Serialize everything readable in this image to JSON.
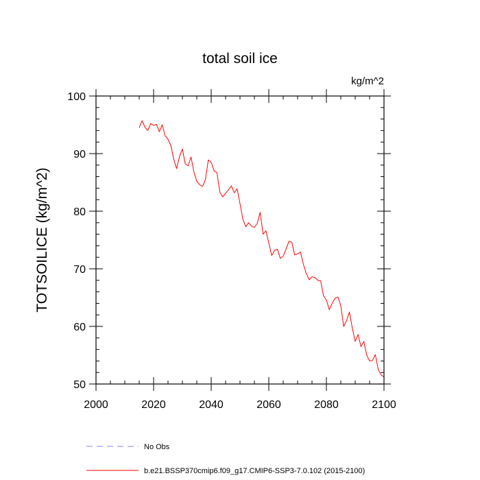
{
  "chart_data": {
    "type": "line",
    "title": "total soil ice",
    "units_label": "kg/m^2",
    "ylabel": "TOTSOILICE  (kg/m^2)",
    "xlabel": "",
    "xlim": [
      2000,
      2100
    ],
    "ylim": [
      50,
      100
    ],
    "x_ticks": [
      2000,
      2020,
      2040,
      2060,
      2080,
      2100
    ],
    "y_ticks": [
      50,
      60,
      70,
      80,
      90,
      100
    ],
    "x_minor_step": 5,
    "y_minor_step": 2,
    "grid": false,
    "legend_position": "bottom",
    "legend": [
      {
        "label": "No Obs",
        "color": "#8080ff",
        "style": "dashed"
      },
      {
        "label": "b.e21.BSSP370cmip6.f09_g17.CMIP6-SSP3-7.0.102 (2015-2100)",
        "color": "#ff0000",
        "style": "solid"
      }
    ],
    "series": [
      {
        "name": "b.e21.BSSP370cmip6.f09_g17.CMIP6-SSP3-7.0.102 (2015-2100)",
        "color": "#ff0000",
        "x": [
          2015,
          2016,
          2017,
          2018,
          2019,
          2020,
          2021,
          2022,
          2023,
          2024,
          2025,
          2026,
          2027,
          2028,
          2029,
          2030,
          2031,
          2032,
          2033,
          2034,
          2035,
          2036,
          2037,
          2038,
          2039,
          2040,
          2041,
          2042,
          2043,
          2044,
          2045,
          2046,
          2047,
          2048,
          2049,
          2050,
          2051,
          2052,
          2053,
          2054,
          2055,
          2056,
          2057,
          2058,
          2059,
          2060,
          2061,
          2062,
          2063,
          2064,
          2065,
          2066,
          2067,
          2068,
          2069,
          2070,
          2071,
          2072,
          2073,
          2074,
          2075,
          2076,
          2077,
          2078,
          2079,
          2080,
          2081,
          2082,
          2083,
          2084,
          2085,
          2086,
          2087,
          2088,
          2089,
          2090,
          2091,
          2092,
          2093,
          2094,
          2095,
          2096,
          2097,
          2098,
          2099,
          2100
        ],
        "values": [
          94.5,
          95.7,
          94.6,
          94.0,
          95.2,
          94.9,
          95.1,
          93.8,
          95.0,
          93.1,
          92.5,
          91.4,
          89.0,
          87.4,
          89.5,
          90.8,
          88.2,
          87.9,
          89.4,
          86.8,
          85.2,
          84.6,
          84.3,
          85.5,
          88.9,
          88.5,
          87.0,
          86.7,
          83.3,
          82.5,
          83.1,
          83.7,
          84.4,
          83.2,
          83.9,
          81.3,
          78.6,
          77.3,
          78.0,
          77.4,
          77.2,
          77.9,
          79.8,
          76.0,
          76.6,
          74.5,
          72.3,
          73.2,
          73.4,
          71.8,
          72.2,
          73.4,
          74.8,
          74.6,
          72.4,
          72.6,
          72.9,
          70.8,
          69.2,
          68.1,
          68.6,
          68.5,
          68.0,
          67.9,
          65.3,
          64.6,
          62.9,
          64.0,
          64.9,
          65.1,
          63.6,
          60.0,
          61.0,
          62.5,
          59.7,
          57.4,
          58.6,
          56.5,
          57.4,
          55.0,
          54.0,
          54.1,
          55.1,
          52.5,
          51.6,
          51.2
        ]
      }
    ]
  }
}
